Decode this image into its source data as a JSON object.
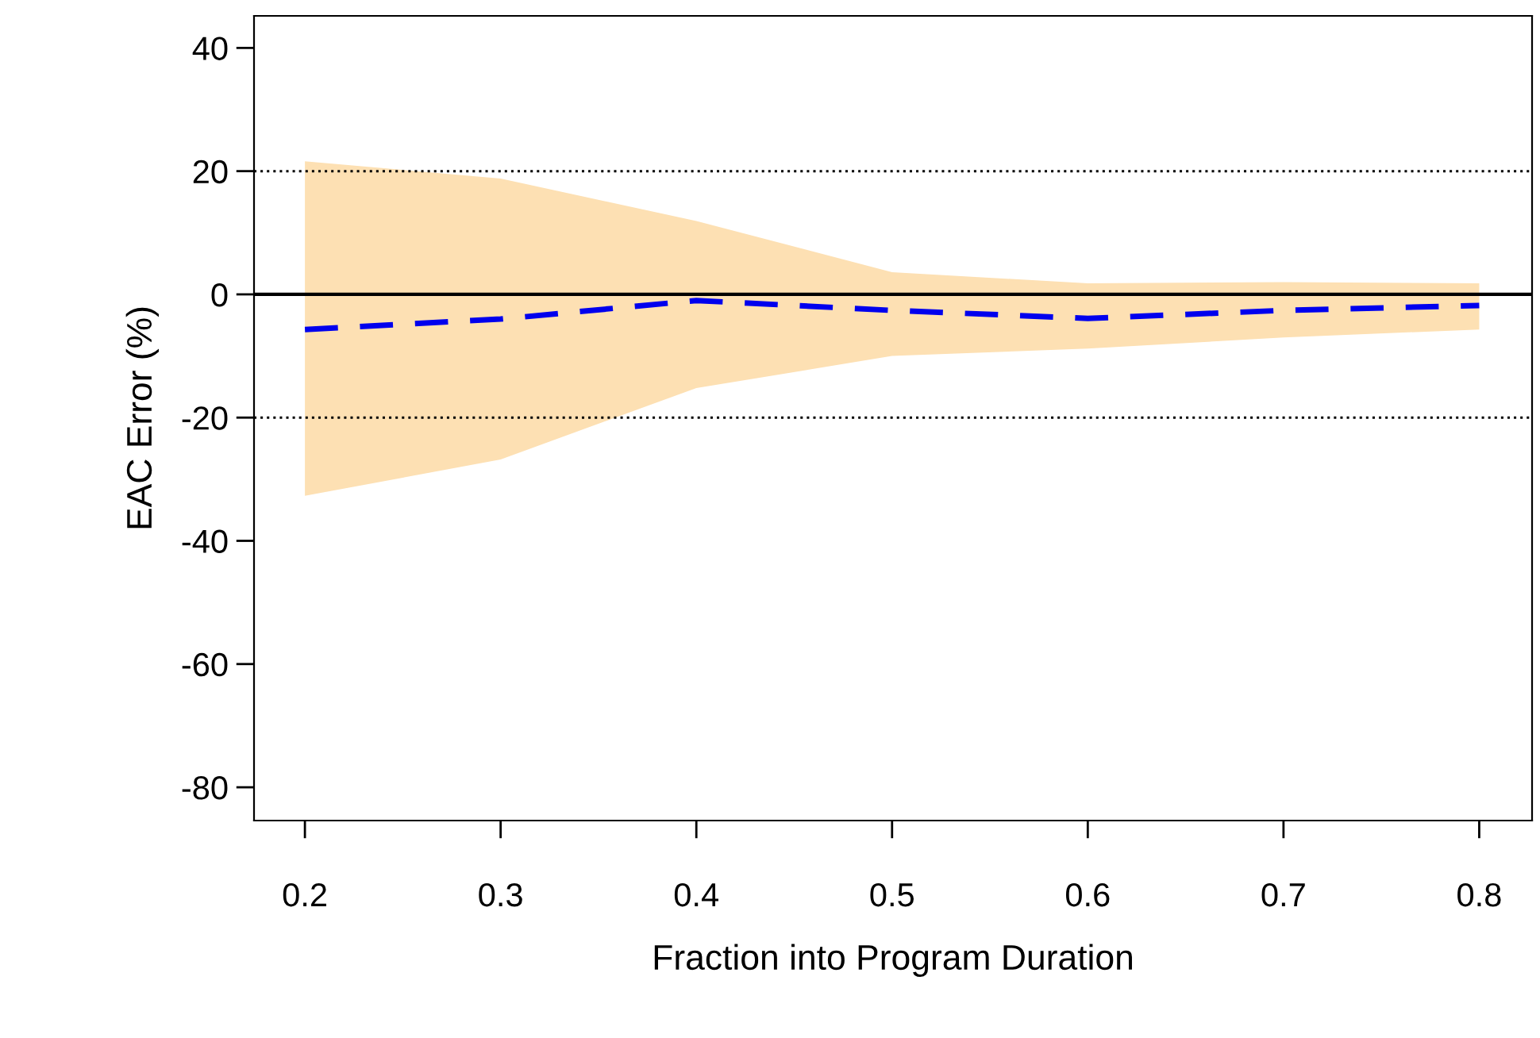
{
  "chart_data": {
    "type": "line",
    "xlabel": "Fraction into Program Duration",
    "ylabel": "EAC Error (%)",
    "xlim": [
      0.174,
      0.827
    ],
    "ylim": [
      -85.4,
      45.2
    ],
    "xticks": [
      0.2,
      0.3,
      0.4,
      0.5,
      0.6,
      0.7,
      0.8
    ],
    "yticks": [
      -80,
      -60,
      -40,
      -20,
      0,
      20,
      40
    ],
    "grid": false,
    "legend": false,
    "line_style": "dashed",
    "marker": "none",
    "series": [
      {
        "color": "#0000ee",
        "x": [
          0.2,
          0.3,
          0.4,
          0.5,
          0.6,
          0.7,
          0.8
        ],
        "values": [
          -5.7,
          -4,
          -1,
          -2.6,
          -3.9,
          -2.6,
          -1.8
        ],
        "lower": [
          -32.7,
          -26.8,
          -15.2,
          -10,
          -8.8,
          -7,
          -5.7
        ],
        "upper": [
          21.6,
          18.8,
          11.9,
          3.6,
          1.8,
          2,
          1.8
        ]
      }
    ],
    "ref_lines": [
      {
        "axis": "y",
        "value": 20,
        "line_style": "dotted",
        "color": "#000000"
      },
      {
        "axis": "y",
        "value": -20,
        "line_style": "dotted",
        "color": "#000000"
      },
      {
        "axis": "y",
        "value": 0,
        "line_style": "solid",
        "color": "#000000"
      }
    ]
  }
}
